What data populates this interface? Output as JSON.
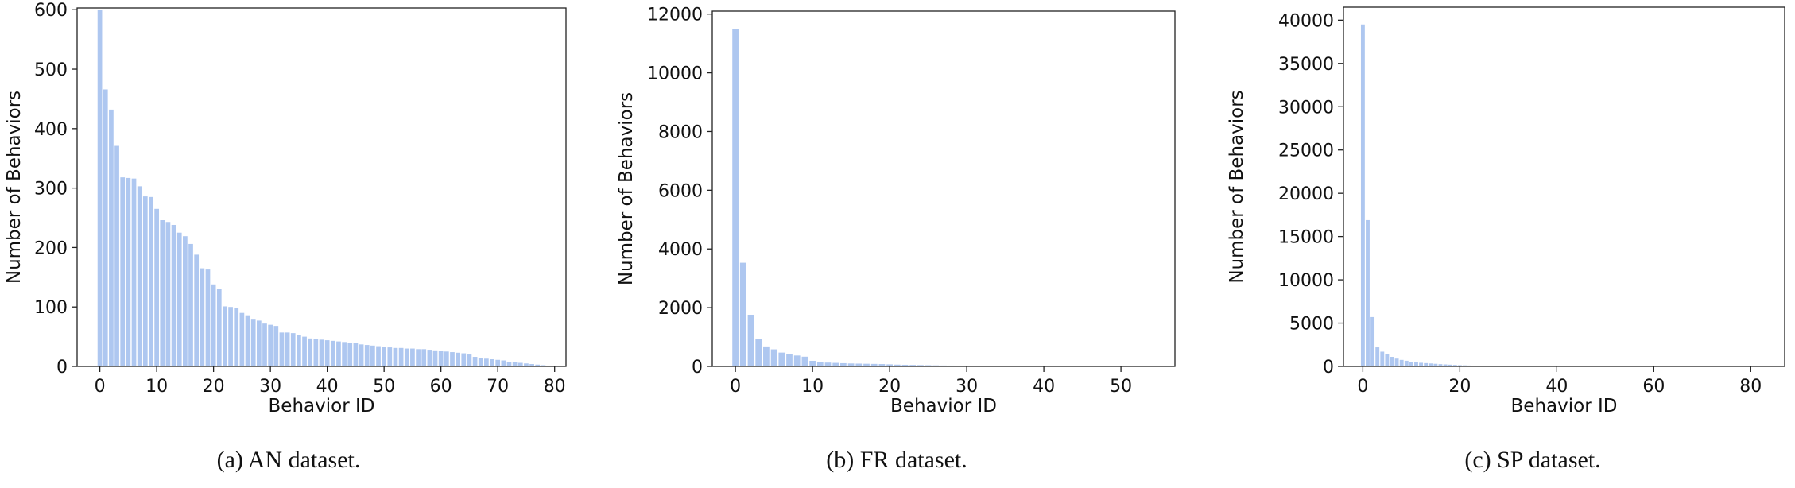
{
  "chart_data": [
    {
      "type": "bar",
      "caption": "(a)  AN dataset.",
      "xlabel": "Behavior ID",
      "ylabel": "Number of Behaviors",
      "xlim": [
        -4,
        82
      ],
      "ylim": [
        0,
        603
      ],
      "xticks": [
        0,
        10,
        20,
        30,
        40,
        50,
        60,
        70,
        80
      ],
      "yticks": [
        0,
        100,
        200,
        300,
        400,
        500,
        600
      ],
      "bar_color": "#aec7f0",
      "x": [
        0,
        1,
        2,
        3,
        4,
        5,
        6,
        7,
        8,
        9,
        10,
        11,
        12,
        13,
        14,
        15,
        16,
        17,
        18,
        19,
        20,
        21,
        22,
        23,
        24,
        25,
        26,
        27,
        28,
        29,
        30,
        31,
        32,
        33,
        34,
        35,
        36,
        37,
        38,
        39,
        40,
        41,
        42,
        43,
        44,
        45,
        46,
        47,
        48,
        49,
        50,
        51,
        52,
        53,
        54,
        55,
        56,
        57,
        58,
        59,
        60,
        61,
        62,
        63,
        64,
        65,
        66,
        67,
        68,
        69,
        70,
        71,
        72,
        73,
        74,
        75,
        76,
        77,
        78,
        79
      ],
      "values": [
        600,
        466,
        432,
        371,
        318,
        317,
        316,
        303,
        286,
        285,
        265,
        246,
        243,
        238,
        225,
        219,
        206,
        188,
        165,
        163,
        138,
        130,
        101,
        100,
        98,
        90,
        86,
        80,
        77,
        72,
        70,
        68,
        57,
        57,
        56,
        53,
        50,
        47,
        46,
        45,
        44,
        43,
        42,
        41,
        40,
        39,
        37,
        36,
        35,
        34,
        33,
        32,
        31,
        31,
        30,
        30,
        29,
        29,
        28,
        27,
        26,
        25,
        24,
        23,
        22,
        20,
        16,
        14,
        13,
        12,
        11,
        10,
        8,
        7,
        6,
        5,
        4,
        3,
        2,
        1
      ]
    },
    {
      "type": "bar",
      "caption": "(b)  FR dataset.",
      "xlabel": "Behavior ID",
      "ylabel": "Number of Behaviors",
      "xlim": [
        -3,
        57
      ],
      "ylim": [
        0,
        12100
      ],
      "xticks": [
        0,
        10,
        20,
        30,
        40,
        50
      ],
      "yticks": [
        0,
        2000,
        4000,
        6000,
        8000,
        10000,
        12000
      ],
      "bar_color": "#aec7f0",
      "x": [
        0,
        1,
        2,
        3,
        4,
        5,
        6,
        7,
        8,
        9,
        10,
        11,
        12,
        13,
        14,
        15,
        16,
        17,
        18,
        19,
        20,
        21,
        22,
        23,
        24,
        25,
        26,
        27,
        28,
        29,
        30,
        31,
        32,
        33,
        34,
        35,
        36,
        37,
        38,
        39,
        40,
        41,
        42,
        43,
        44,
        45,
        46,
        47,
        48,
        49,
        50,
        51,
        52,
        53,
        54
      ],
      "values": [
        11500,
        3530,
        1760,
        920,
        680,
        580,
        470,
        430,
        370,
        330,
        190,
        150,
        130,
        120,
        110,
        100,
        95,
        90,
        85,
        80,
        70,
        60,
        55,
        50,
        45,
        40,
        35,
        30,
        28,
        25,
        22,
        20,
        18,
        16,
        15,
        14,
        13,
        12,
        11,
        10,
        9,
        8,
        8,
        7,
        7,
        6,
        6,
        5,
        5,
        4,
        4,
        3,
        3,
        2,
        2
      ]
    },
    {
      "type": "bar",
      "caption": "(c)  SP dataset.",
      "xlabel": "Behavior ID",
      "ylabel": "Number of Behaviors",
      "xlim": [
        -4,
        87
      ],
      "ylim": [
        0,
        41500
      ],
      "xticks": [
        0,
        20,
        40,
        60,
        80
      ],
      "yticks": [
        0,
        5000,
        10000,
        15000,
        20000,
        25000,
        30000,
        35000,
        40000
      ],
      "bar_color": "#aec7f0",
      "x": [
        0,
        1,
        2,
        3,
        4,
        5,
        6,
        7,
        8,
        9,
        10,
        11,
        12,
        13,
        14,
        15,
        16,
        17,
        18,
        19,
        20,
        21,
        22,
        23,
        24,
        25,
        26,
        27,
        28,
        29,
        30,
        31,
        32,
        33,
        34,
        35,
        36,
        37,
        38,
        39,
        40,
        41,
        42,
        43,
        44,
        45,
        46,
        47,
        48,
        49,
        50,
        51,
        52,
        53,
        54,
        55,
        56,
        57,
        58,
        59,
        60,
        61,
        62,
        63,
        64,
        65,
        66,
        67,
        68,
        69,
        70,
        71,
        72,
        73,
        74,
        75,
        76,
        77,
        78,
        79,
        80,
        81,
        82,
        83
      ],
      "values": [
        39500,
        16900,
        5700,
        2200,
        1700,
        1400,
        1100,
        900,
        750,
        650,
        550,
        480,
        420,
        380,
        340,
        300,
        260,
        230,
        200,
        170,
        140,
        120,
        100,
        90,
        80,
        70,
        60,
        55,
        50,
        45,
        40,
        38,
        36,
        34,
        32,
        30,
        28,
        26,
        24,
        22,
        20,
        19,
        18,
        17,
        16,
        15,
        14,
        13,
        12,
        11,
        10,
        10,
        9,
        9,
        8,
        8,
        7,
        7,
        6,
        6,
        5,
        5,
        5,
        4,
        4,
        4,
        3,
        3,
        3,
        3,
        2,
        2,
        2,
        2,
        2,
        1,
        1,
        1,
        1,
        1,
        1,
        1,
        1,
        1
      ]
    }
  ]
}
